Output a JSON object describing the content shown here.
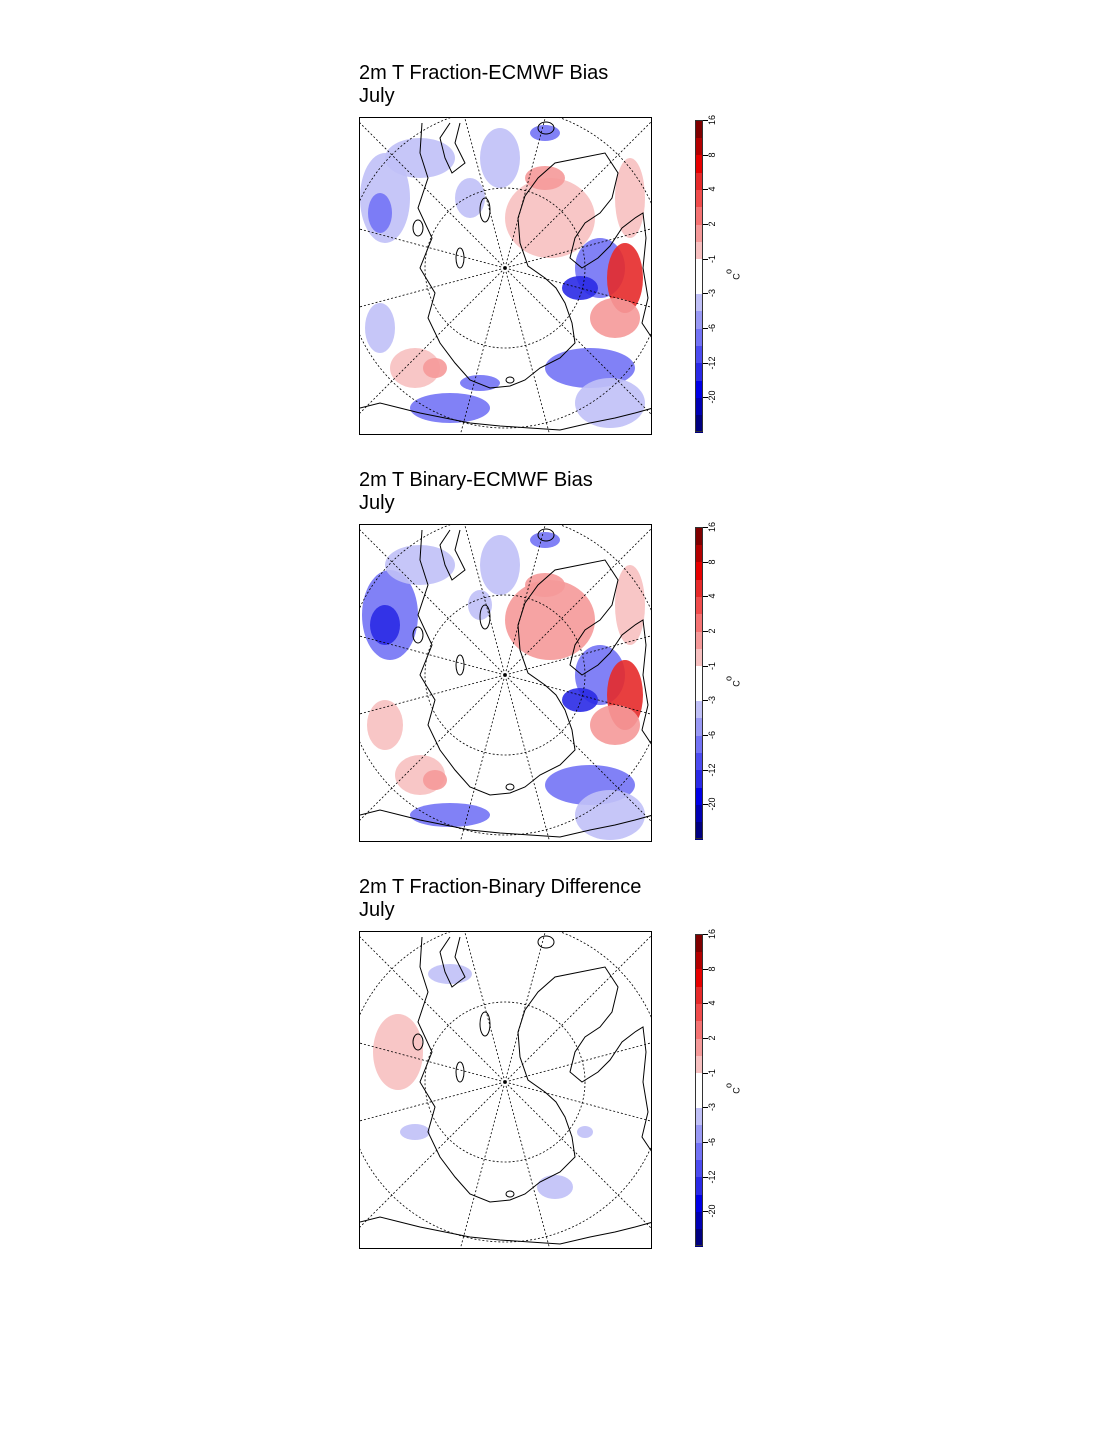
{
  "panels": [
    {
      "title_line1": "2m T Fraction-ECMWF Bias",
      "title_line2": "July",
      "pattern": "bias_a"
    },
    {
      "title_line1": "2m T Binary-ECMWF Bias",
      "title_line2": "July",
      "pattern": "bias_b"
    },
    {
      "title_line1": "2m T Fraction-Binary Difference",
      "title_line2": "July",
      "pattern": "diff"
    }
  ],
  "colorbar": {
    "labels": [
      "-20",
      "-12",
      "-6",
      "-3",
      "-1",
      "2",
      "4",
      "8",
      "16"
    ],
    "unit_degree": "o",
    "unit_letter": "C",
    "colors": [
      "#000080",
      "#0000b3",
      "#0000e6",
      "#2a2ae6",
      "#4c4cf0",
      "#7373f5",
      "#9999f5",
      "#c0c0f7",
      "#ffffff",
      "#ffffff",
      "#f7c0c0",
      "#f59999",
      "#f57373",
      "#f04c4c",
      "#e62a2a",
      "#e60000",
      "#b30000",
      "#800000"
    ]
  }
}
